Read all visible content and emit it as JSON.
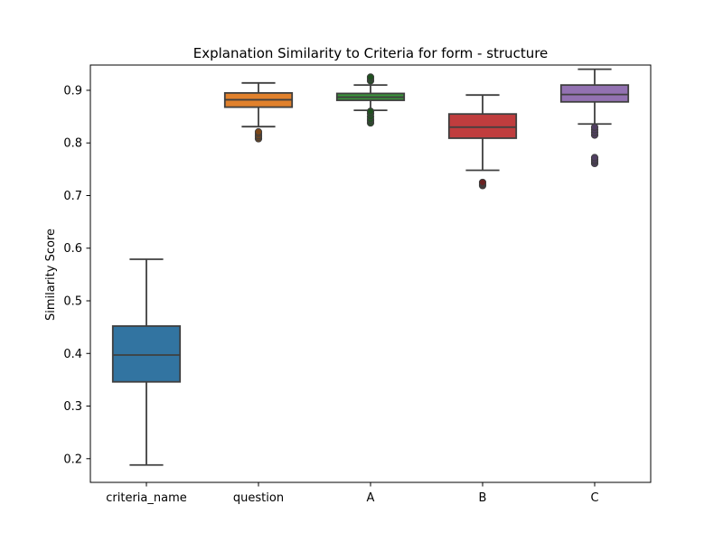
{
  "chart_data": {
    "type": "box",
    "title": "Explanation Similarity to Criteria for form - structure",
    "xlabel": "",
    "ylabel": "Similarity Score",
    "ylim": [
      0.155,
      0.948
    ],
    "yticks": [
      0.2,
      0.3,
      0.4,
      0.5,
      0.6,
      0.7,
      0.8,
      0.9
    ],
    "ytick_labels": [
      "0.2",
      "0.3",
      "0.4",
      "0.5",
      "0.6",
      "0.7",
      "0.8",
      "0.9"
    ],
    "grid": false,
    "legend": "none",
    "categories": [
      "criteria_name",
      "question",
      "A",
      "B",
      "C"
    ],
    "series": [
      {
        "category": "criteria_name",
        "color": "#3274a1",
        "whisker_low": 0.188,
        "q1": 0.346,
        "median": 0.397,
        "q3": 0.452,
        "whisker_high": 0.579,
        "outliers": []
      },
      {
        "category": "question",
        "color": "#e1812c",
        "whisker_low": 0.831,
        "q1": 0.868,
        "median": 0.882,
        "q3": 0.895,
        "whisker_high": 0.914,
        "outliers": [
          0.808,
          0.811,
          0.814,
          0.818,
          0.821
        ]
      },
      {
        "category": "A",
        "color": "#3a923a",
        "whisker_low": 0.862,
        "q1": 0.881,
        "median": 0.887,
        "q3": 0.894,
        "whisker_high": 0.91,
        "outliers": [
          0.838,
          0.842,
          0.845,
          0.85,
          0.856,
          0.86,
          0.918,
          0.922,
          0.925
        ]
      },
      {
        "category": "B",
        "color": "#c03d3e",
        "whisker_low": 0.748,
        "q1": 0.809,
        "median": 0.83,
        "q3": 0.855,
        "whisker_high": 0.891,
        "outliers": [
          0.719,
          0.721,
          0.723,
          0.725
        ]
      },
      {
        "category": "C",
        "color": "#9372b2",
        "whisker_low": 0.836,
        "q1": 0.878,
        "median": 0.892,
        "q3": 0.91,
        "whisker_high": 0.94,
        "outliers": [
          0.761,
          0.765,
          0.768,
          0.772,
          0.815,
          0.82,
          0.825,
          0.83
        ]
      }
    ]
  }
}
